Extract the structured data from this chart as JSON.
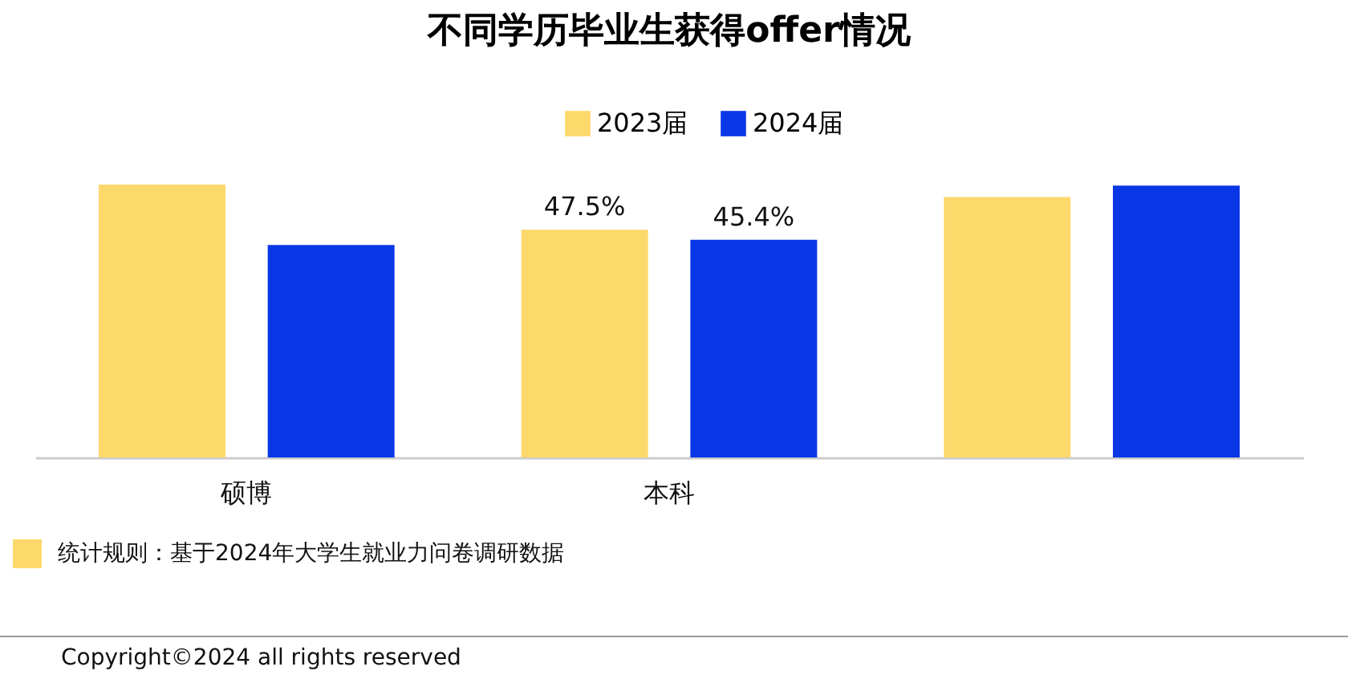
{
  "chart_data": {
    "type": "bar",
    "title": "不同学历毕业生获得offer情况",
    "categories": [
      "硕博",
      "本科",
      null
    ],
    "legend": "top",
    "series": [
      {
        "name": "2023届",
        "color": "#fdd86b",
        "values": [
          56.9,
          47.5,
          54.3
        ],
        "value_labels": [
          null,
          "47.5%",
          null
        ]
      },
      {
        "name": "2024届",
        "color": "#0a37e6",
        "values": [
          44.3,
          45.4,
          56.7
        ],
        "value_labels": [
          null,
          "45.4%",
          null
        ]
      }
    ],
    "annotations": [
      "统计规则：基于2024年大学生就业力问卷调研数据",
      "Copyright©2024 all rights reserved"
    ]
  }
}
